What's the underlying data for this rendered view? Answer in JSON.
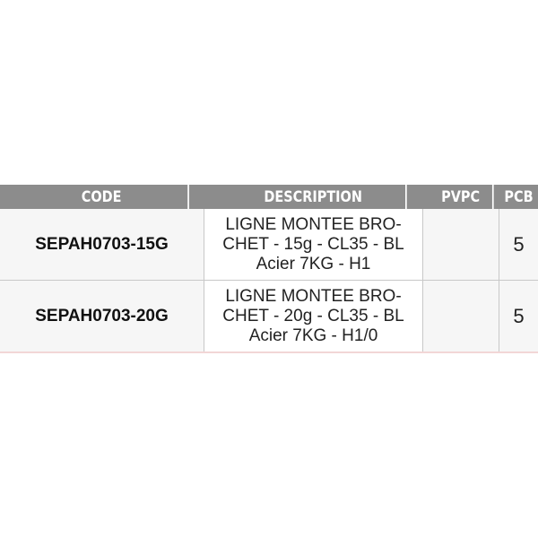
{
  "table": {
    "headers": [
      "CODE",
      "DESCRIPTION",
      "PVPC",
      "PCB"
    ],
    "rows": [
      {
        "code": "SEPAH0703-15G",
        "description": [
          "LIGNE MONTEE BRO-",
          "CHET - 15g - CL35 - BL",
          "Acier 7KG - H1"
        ],
        "pvpc": "",
        "pcb": "5"
      },
      {
        "code": "SEPAH0703-20G",
        "description": [
          "LIGNE MONTEE BRO-",
          "CHET - 20g - CL35 - BL",
          "Acier 7KG - H1/0"
        ],
        "pvpc": "",
        "pcb": "5"
      }
    ]
  },
  "colors": {
    "header_bg": "#8c8c8c",
    "header_text": "#ffffff"
  }
}
